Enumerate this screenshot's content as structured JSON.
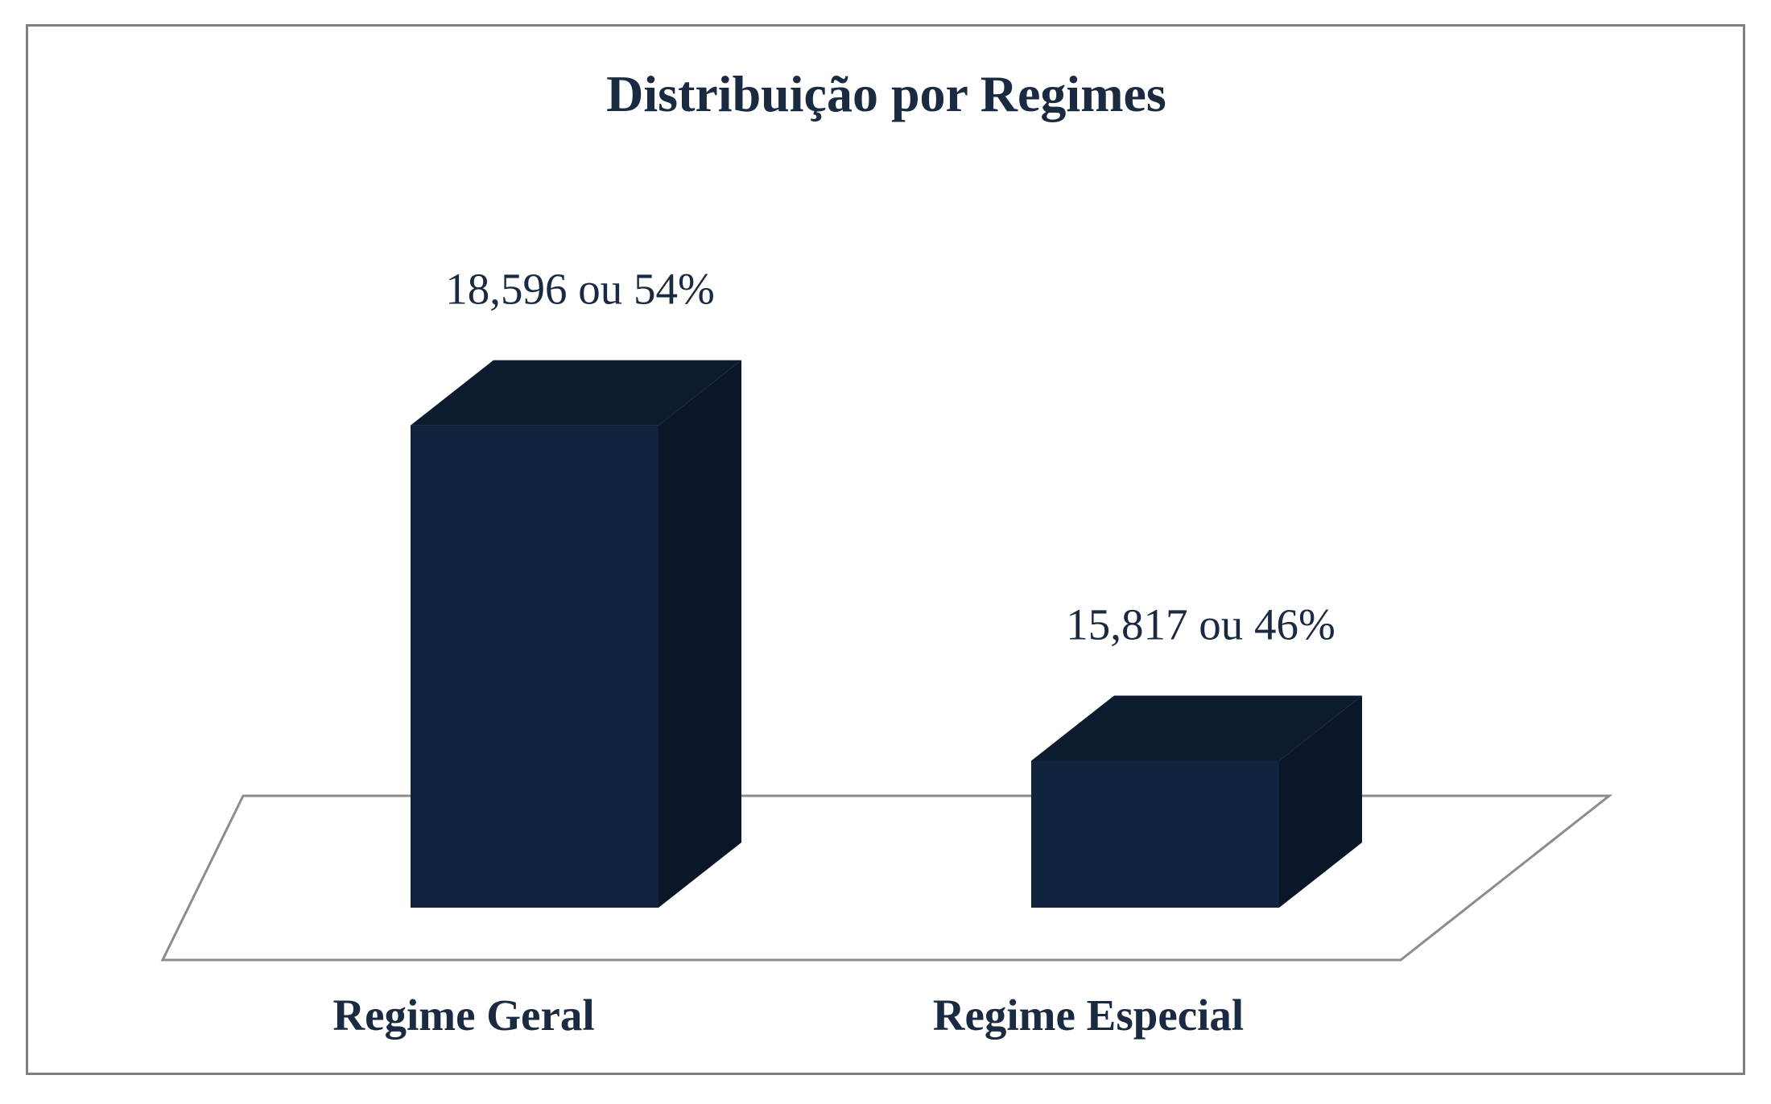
{
  "chart_data": {
    "type": "bar",
    "title": "Distribuição por Regimes",
    "categories": [
      "Regime Geral",
      "Regime Especial"
    ],
    "values": [
      18596,
      15817
    ],
    "data_labels": [
      "18,596 ou 54%",
      "15,817 ou 46%"
    ],
    "ylim": [
      14600,
      19100
    ],
    "style": "3d-column",
    "grid": false,
    "legend": "none",
    "colors": {
      "bar_front": "#12233d",
      "bar_top": "#0c1b30",
      "bar_side": "#0b1628",
      "text": "#1a2a40",
      "floor_stroke": "#8c8c8c",
      "frame": "#7f7f7f"
    }
  }
}
